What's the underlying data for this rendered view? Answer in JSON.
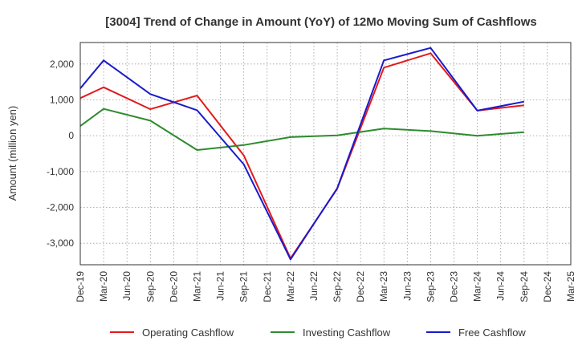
{
  "chart_data": {
    "type": "line",
    "title": "[3004]  Trend of Change in Amount (YoY) of 12Mo Moving Sum of Cashflows",
    "xlabel": "",
    "ylabel": "Amount (million yen)",
    "ylim": [
      -3600,
      2600
    ],
    "yticks": [
      2000,
      1000,
      0,
      -1000,
      -2000,
      -3000
    ],
    "ytick_labels": [
      "2,000",
      "1,000",
      "0",
      "-1,000",
      "-2,000",
      "-3,000"
    ],
    "grid": true,
    "legend_position": "bottom",
    "categories": [
      "Dec-19",
      "Mar-20",
      "Jun-20",
      "Sep-20",
      "Dec-20",
      "Mar-21",
      "Jun-21",
      "Sep-21",
      "Dec-21",
      "Mar-22",
      "Jun-22",
      "Sep-22",
      "Dec-22",
      "Mar-23",
      "Jun-23",
      "Sep-23",
      "Dec-23",
      "Mar-24",
      "Jun-24",
      "Sep-24",
      "Dec-24",
      "Mar-25"
    ],
    "series": [
      {
        "name": "Operating Cashflow",
        "color": "#e31a1c",
        "values": [
          1050,
          1350,
          null,
          740,
          null,
          1120,
          null,
          -550,
          null,
          -3420,
          null,
          -1480,
          null,
          1900,
          null,
          2300,
          null,
          700,
          null,
          850,
          null,
          null
        ]
      },
      {
        "name": "Investing Cashflow",
        "color": "#2e8b2e",
        "values": [
          270,
          750,
          null,
          420,
          null,
          -400,
          null,
          -260,
          null,
          -40,
          null,
          10,
          null,
          200,
          null,
          130,
          null,
          0,
          null,
          100,
          null,
          null
        ]
      },
      {
        "name": "Free Cashflow",
        "color": "#1a1acc",
        "values": [
          1320,
          2100,
          null,
          1160,
          null,
          710,
          null,
          -800,
          null,
          -3450,
          null,
          -1470,
          null,
          2100,
          null,
          2450,
          null,
          700,
          null,
          950,
          null,
          null
        ]
      }
    ]
  }
}
